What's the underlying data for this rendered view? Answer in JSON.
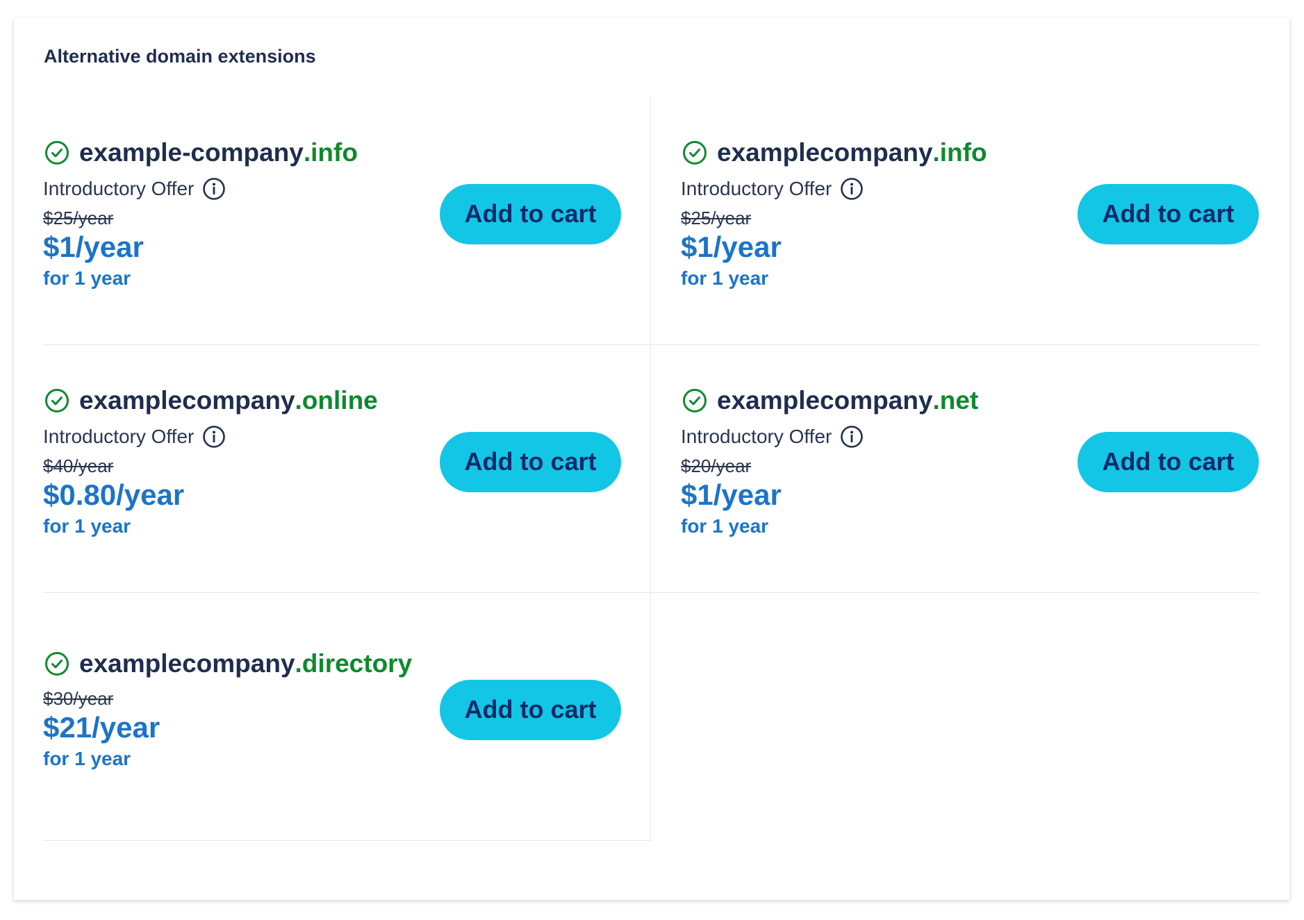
{
  "title": "Alternative domain extensions",
  "colors": {
    "available_check": "#0d8a2c",
    "tld": "#0d8a2c",
    "price": "#1b74c9",
    "button_bg": "#14c6e6",
    "button_text": "#0c2a68"
  },
  "items": [
    {
      "name": "example-company",
      "tld": ".info",
      "intro": "Introductory Offer",
      "original_price": "$25/year",
      "price": "$1/year",
      "term": "for 1 year",
      "button": "Add to cart"
    },
    {
      "name": "examplecompany",
      "tld": ".info",
      "intro": "Introductory Offer",
      "original_price": "$25/year",
      "price": "$1/year",
      "term": "for 1 year",
      "button": "Add to cart"
    },
    {
      "name": "examplecompany",
      "tld": ".online",
      "intro": "Introductory Offer",
      "original_price": "$40/year",
      "price": "$0.80/year",
      "term": "for 1 year",
      "button": "Add to cart"
    },
    {
      "name": "examplecompany",
      "tld": ".net",
      "intro": "Introductory Offer",
      "original_price": "$20/year",
      "price": "$1/year",
      "term": "for 1 year",
      "button": "Add to cart"
    },
    {
      "name": "examplecompany",
      "tld": ".directory",
      "intro": null,
      "original_price": "$30/year",
      "price": "$21/year",
      "term": "for 1 year",
      "button": "Add to cart"
    }
  ]
}
